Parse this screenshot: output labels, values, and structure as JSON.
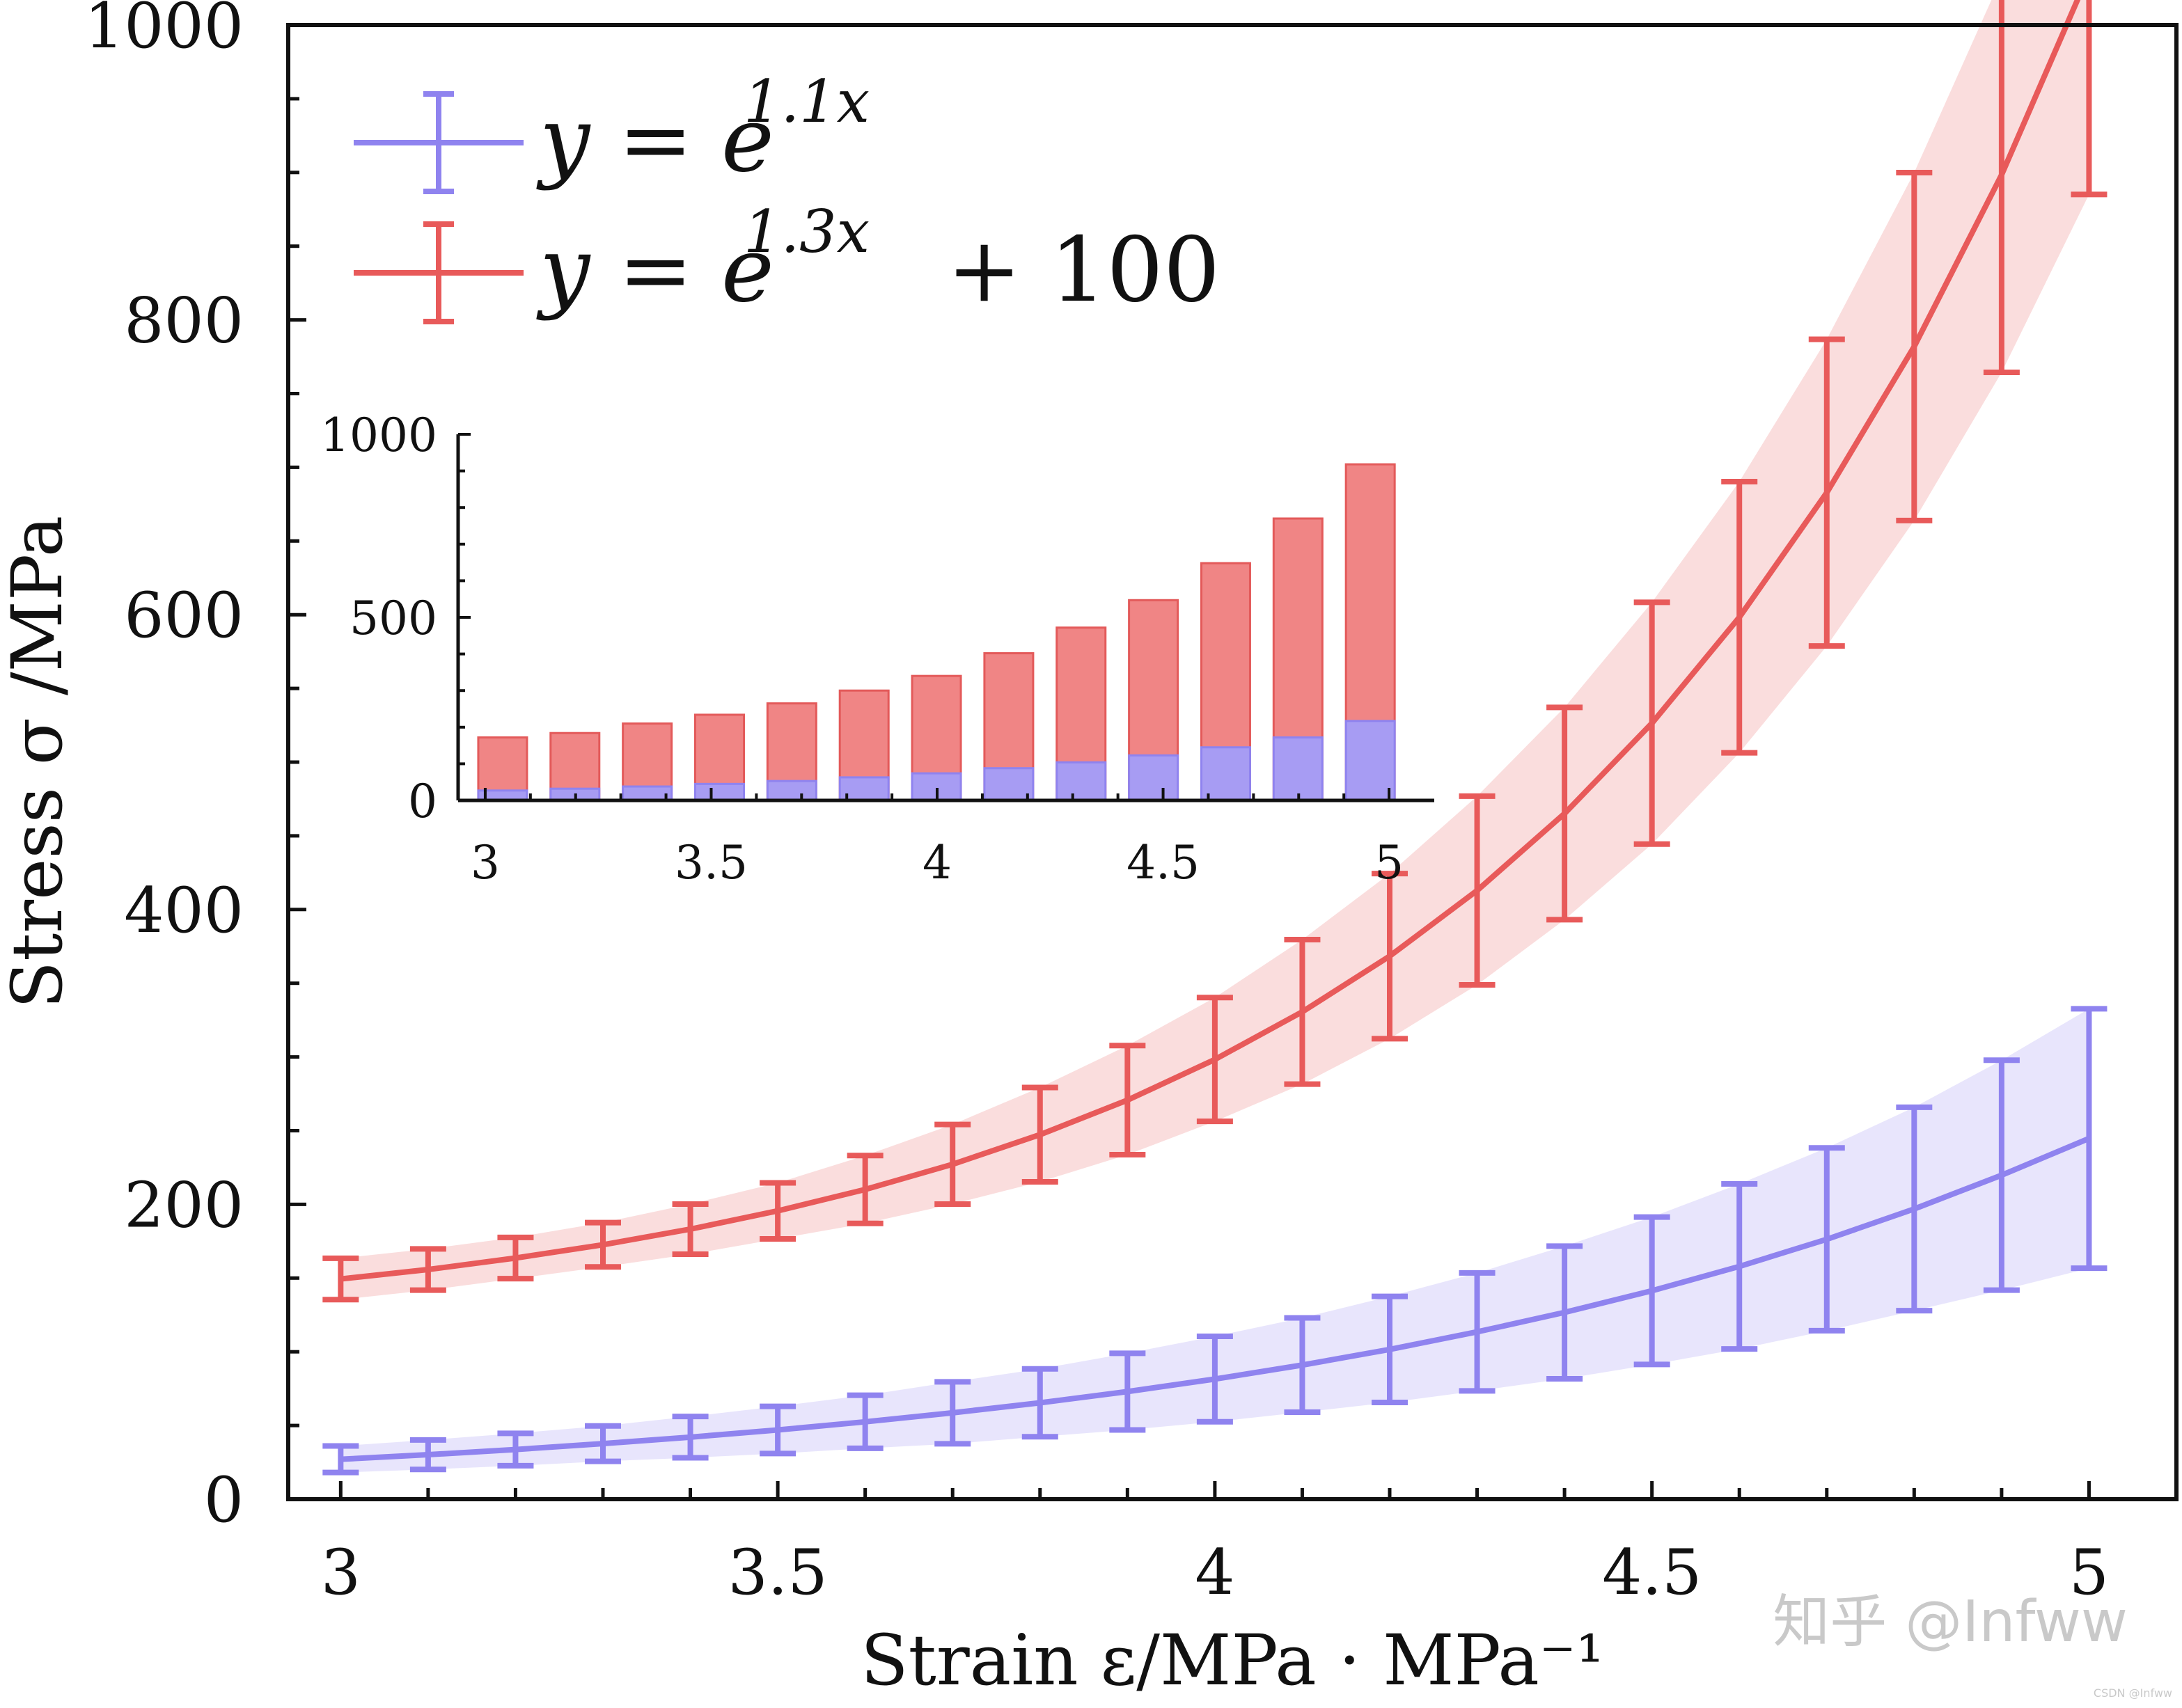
{
  "chart_data": [
    {
      "type": "line",
      "xlabel": "Strain ε/MPa · MPa⁻¹",
      "ylabel": "Stress σ /MPa",
      "xlim": [
        2.94,
        5.1
      ],
      "ylim": [
        0,
        1000
      ],
      "x_ticks": [
        "3",
        "3.5",
        "4",
        "4.5",
        "5"
      ],
      "y_ticks": [
        "0",
        "200",
        "400",
        "600",
        "800",
        "1000"
      ],
      "legend_position": "top-left",
      "grid": false,
      "shaded_band": true,
      "x": [
        3.0,
        3.1,
        3.2,
        3.3,
        3.4,
        3.5,
        3.6,
        3.7,
        3.8,
        3.9,
        4.0,
        4.1,
        4.2,
        4.3,
        4.4,
        4.5,
        4.6,
        4.7,
        4.8,
        4.9,
        5.0
      ],
      "series": [
        {
          "name": "y = e^{1.1x}",
          "legend_label_main": "y = e",
          "legend_label_exp": "1.1x",
          "color": "#8f83ef",
          "band_color": "#e4e0fb",
          "values": [
            27.1,
            30.2,
            33.7,
            37.7,
            42.1,
            47.0,
            52.5,
            58.6,
            65.4,
            73.0,
            81.5,
            91.0,
            101.6,
            113.5,
            126.7,
            141.4,
            157.9,
            176.3,
            196.9,
            219.8,
            244.7
          ],
          "error": [
            9,
            10,
            11,
            12,
            14,
            16,
            18,
            21,
            23,
            26,
            29,
            32,
            36,
            40,
            45,
            50,
            56,
            62,
            69,
            78,
            88
          ]
        },
        {
          "name": "y = e^{1.3x} + 100",
          "legend_label_main": "y = e",
          "legend_label_exp": "1.3x",
          "legend_label_tail": "+ 100",
          "color": "#e85a5a",
          "band_color": "#f9d7d7",
          "values": [
            149.4,
            155.8,
            163.6,
            172.6,
            183.2,
            195.6,
            210.1,
            227.2,
            247.3,
            270.7,
            298.3,
            330.6,
            368.4,
            412.9,
            465.1,
            526.4,
            598.3,
            682.8,
            781.9,
            898.4,
            1035.1
          ],
          "error": [
            14,
            14,
            14,
            15,
            17,
            19,
            23,
            27,
            32,
            37,
            42,
            49,
            56,
            64,
            72,
            82,
            92,
            104,
            118,
            134,
            150
          ]
        }
      ]
    },
    {
      "type": "bar",
      "role": "inset",
      "x_ticks": [
        "3",
        "3.5",
        "4",
        "4.5",
        "5"
      ],
      "y_ticks": [
        "0",
        "500",
        "1000"
      ],
      "xlim": [
        2.94,
        5.1
      ],
      "ylim": [
        0,
        1000
      ],
      "x": [
        3.0,
        3.16,
        3.32,
        3.48,
        3.64,
        3.8,
        3.96,
        4.12,
        4.28,
        4.44,
        4.6,
        4.76,
        4.92
      ],
      "series": [
        {
          "name": "",
          "color": "#a79cf3",
          "values": [
            27,
            32,
            38,
            45,
            53,
            63,
            74,
            88,
            104,
            123,
            145,
            172,
            217
          ]
        },
        {
          "name": "",
          "color": "#f08585",
          "values": [
            172,
            184,
            210,
            234,
            265,
            300,
            340,
            402,
            472,
            547,
            648,
            770,
            918
          ]
        }
      ]
    }
  ],
  "watermark": "知乎 @Infww",
  "corner_note": "CSDN @Infww"
}
